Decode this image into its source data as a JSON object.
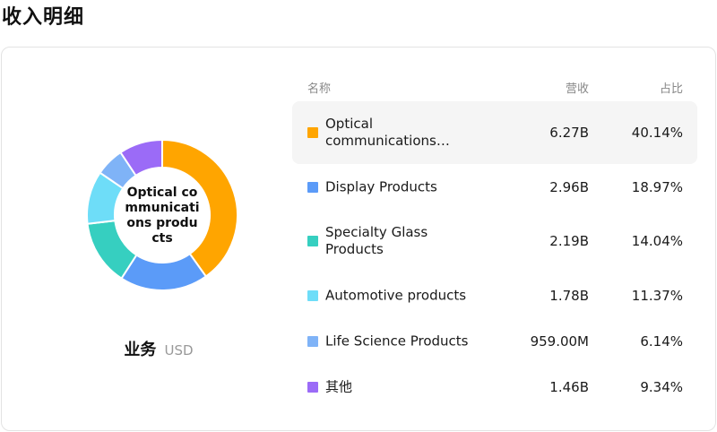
{
  "page_title": "收入明细",
  "donut": {
    "center_lines": [
      "Optical co",
      "mmunicati",
      "ons produ",
      "cts"
    ]
  },
  "segment_label": {
    "main": "业务",
    "unit": "USD"
  },
  "table": {
    "headers": {
      "name": "名称",
      "revenue": "营收",
      "share": "占比"
    },
    "rows": [
      {
        "name_line1": "Optical",
        "name_line2": "communications…",
        "revenue": "6.27B",
        "share": "40.14%",
        "color": "#FFA500",
        "share_value": 40.14
      },
      {
        "name_line1": "Display Products",
        "name_line2": "",
        "revenue": "2.96B",
        "share": "18.97%",
        "color": "#5B9BF8",
        "share_value": 18.97
      },
      {
        "name_line1": "Specialty Glass",
        "name_line2": "Products",
        "revenue": "2.19B",
        "share": "14.04%",
        "color": "#36CFC0",
        "share_value": 14.04
      },
      {
        "name_line1": "Automotive products",
        "name_line2": "",
        "revenue": "1.78B",
        "share": "11.37%",
        "color": "#6EDDF8",
        "share_value": 11.37
      },
      {
        "name_line1": "Life Science Products",
        "name_line2": "",
        "revenue": "959.00M",
        "share": "6.14%",
        "color": "#7FB3F7",
        "share_value": 6.14
      },
      {
        "name_line1": "其他",
        "name_line2": "",
        "revenue": "1.46B",
        "share": "9.34%",
        "color": "#9B6BF7",
        "share_value": 9.34
      }
    ]
  }
}
